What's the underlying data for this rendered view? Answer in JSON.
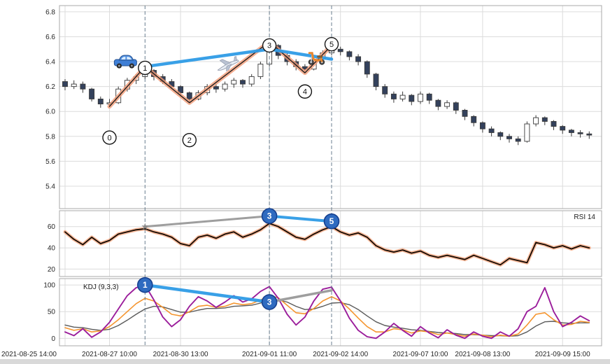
{
  "colors": {
    "grid": "#dcdcdc",
    "panel_border": "#a8a8a8",
    "axis_text": "#262626",
    "candle_up_fill": "#ffffff",
    "candle_down_fill": "#33415c",
    "candle_stroke": "#3a3a3a",
    "zigzag_glow": "#f29b77",
    "zigzag_line": "#1a1a1a",
    "trend_blue": "#2e9be6",
    "trend_gray": "#9e9e9e",
    "rsi_glow": "#f6b08e",
    "rsi_line": "#140a02",
    "kdj_k": "#f5952f",
    "kdj_d": "#5a5a5a",
    "kdj_j": "#9b1d9b",
    "dashed_guide": "#5b7285",
    "marker_blue_fill": "#2f6bc0",
    "marker_blue_border": "#16408f",
    "star_color": "#8a8a8a",
    "bottom_strip": "#d9d9d9"
  },
  "x_axis": {
    "tick_labels": [
      "2021-08-25 14:00",
      "2021-08-27 10:00",
      "2021-08-30 13:00",
      "2021-09-01 11:00",
      "2021-09-02 14:00",
      "2021-09-07 10:00",
      "2021-09-08 13:00",
      "2021-09-09 15:00"
    ],
    "tick_indices": [
      0,
      5,
      13,
      23,
      31,
      40,
      47,
      56
    ]
  },
  "dashed_line_indices": [
    9,
    23,
    30
  ],
  "chart_data": [
    {
      "type": "candlestick",
      "name": "price",
      "title": "",
      "ylim": [
        5.22,
        6.85
      ],
      "yticks": [
        6.8,
        6.6,
        6.4,
        6.2,
        6.0,
        5.8,
        5.6,
        5.4
      ],
      "ohlc": [
        [
          6.24,
          6.26,
          6.17,
          6.2
        ],
        [
          6.2,
          6.25,
          6.18,
          6.22
        ],
        [
          6.22,
          6.24,
          6.15,
          6.18
        ],
        [
          6.18,
          6.19,
          6.08,
          6.1
        ],
        [
          6.1,
          6.12,
          6.03,
          6.06
        ],
        [
          6.06,
          6.1,
          6.04,
          6.07
        ],
        [
          6.07,
          6.2,
          6.06,
          6.18
        ],
        [
          6.18,
          6.27,
          6.16,
          6.25
        ],
        [
          6.25,
          6.3,
          6.22,
          6.28
        ],
        [
          6.28,
          6.36,
          6.26,
          6.33
        ],
        [
          6.33,
          6.34,
          6.25,
          6.28
        ],
        [
          6.28,
          6.3,
          6.22,
          6.24
        ],
        [
          6.24,
          6.26,
          6.18,
          6.2
        ],
        [
          6.2,
          6.21,
          6.12,
          6.15
        ],
        [
          6.15,
          6.16,
          6.07,
          6.1
        ],
        [
          6.1,
          6.17,
          6.09,
          6.15
        ],
        [
          6.15,
          6.22,
          6.13,
          6.2
        ],
        [
          6.2,
          6.22,
          6.15,
          6.18
        ],
        [
          6.18,
          6.24,
          6.16,
          6.22
        ],
        [
          6.22,
          6.27,
          6.19,
          6.25
        ],
        [
          6.25,
          6.26,
          6.19,
          6.22
        ],
        [
          6.22,
          6.3,
          6.2,
          6.28
        ],
        [
          6.28,
          6.4,
          6.26,
          6.38
        ],
        [
          6.38,
          6.56,
          6.36,
          6.53
        ],
        [
          6.53,
          6.54,
          6.42,
          6.45
        ],
        [
          6.45,
          6.47,
          6.37,
          6.4
        ],
        [
          6.4,
          6.42,
          6.33,
          6.36
        ],
        [
          6.36,
          6.38,
          6.31,
          6.34
        ],
        [
          6.34,
          6.44,
          6.33,
          6.42
        ],
        [
          6.42,
          6.49,
          6.4,
          6.47
        ],
        [
          6.47,
          6.53,
          6.45,
          6.5
        ],
        [
          6.5,
          6.52,
          6.45,
          6.48
        ],
        [
          6.48,
          6.49,
          6.41,
          6.44
        ],
        [
          6.44,
          6.46,
          6.37,
          6.4
        ],
        [
          6.4,
          6.41,
          6.27,
          6.3
        ],
        [
          6.3,
          6.31,
          6.17,
          6.2
        ],
        [
          6.2,
          6.22,
          6.11,
          6.14
        ],
        [
          6.14,
          6.16,
          6.07,
          6.1
        ],
        [
          6.1,
          6.16,
          6.08,
          6.13
        ],
        [
          6.13,
          6.14,
          6.05,
          6.08
        ],
        [
          6.08,
          6.16,
          6.06,
          6.14
        ],
        [
          6.14,
          6.15,
          6.06,
          6.09
        ],
        [
          6.09,
          6.1,
          6.01,
          6.04
        ],
        [
          6.04,
          6.09,
          6.02,
          6.07
        ],
        [
          6.07,
          6.08,
          5.98,
          6.01
        ],
        [
          6.01,
          6.02,
          5.93,
          5.96
        ],
        [
          5.96,
          5.97,
          5.88,
          5.91
        ],
        [
          5.91,
          5.92,
          5.83,
          5.86
        ],
        [
          5.86,
          5.88,
          5.8,
          5.83
        ],
        [
          5.83,
          5.84,
          5.77,
          5.8
        ],
        [
          5.8,
          5.82,
          5.75,
          5.78
        ],
        [
          5.78,
          5.8,
          5.73,
          5.76
        ],
        [
          5.76,
          5.92,
          5.75,
          5.9
        ],
        [
          5.9,
          5.97,
          5.88,
          5.95
        ],
        [
          5.95,
          5.96,
          5.89,
          5.92
        ],
        [
          5.92,
          5.93,
          5.85,
          5.88
        ],
        [
          5.88,
          5.89,
          5.82,
          5.85
        ],
        [
          5.85,
          5.86,
          5.8,
          5.83
        ],
        [
          5.83,
          5.85,
          5.79,
          5.82
        ],
        [
          5.82,
          5.84,
          5.78,
          5.81
        ]
      ],
      "zigzag": [
        [
          5,
          6.04
        ],
        [
          9,
          6.36
        ],
        [
          14,
          6.07
        ],
        [
          23,
          6.56
        ],
        [
          27,
          6.31
        ],
        [
          30,
          6.53
        ]
      ],
      "blue_line": [
        [
          9,
          6.36
        ],
        [
          23,
          6.5
        ],
        [
          30,
          6.42
        ]
      ],
      "markers": [
        {
          "label": "0",
          "i": 5,
          "v": 5.79
        },
        {
          "label": "1",
          "i": 9,
          "v": 6.35
        },
        {
          "label": "2",
          "i": 14,
          "v": 5.77
        },
        {
          "label": "3",
          "i": 23,
          "v": 6.53
        },
        {
          "label": "4",
          "i": 27,
          "v": 6.16
        },
        {
          "label": "5",
          "i": 30,
          "v": 6.54
        }
      ],
      "icons": [
        {
          "name": "car",
          "i": 6.8,
          "v": 6.4
        },
        {
          "name": "airplane",
          "i": 18.3,
          "v": 6.38
        },
        {
          "name": "scooter",
          "i": 28.6,
          "v": 6.43
        }
      ]
    },
    {
      "type": "line",
      "name": "rsi",
      "label": "RSI 14",
      "ylim": [
        13,
        75
      ],
      "yticks": [
        60,
        40,
        20
      ],
      "values": [
        55,
        48,
        43,
        50,
        44,
        47,
        53,
        55,
        57,
        58,
        55,
        53,
        50,
        44,
        42,
        50,
        52,
        49,
        53,
        55,
        50,
        53,
        57,
        63,
        60,
        55,
        50,
        48,
        53,
        57,
        60,
        55,
        52,
        54,
        50,
        42,
        38,
        36,
        38,
        35,
        37,
        33,
        31,
        33,
        31,
        29,
        33,
        30,
        27,
        24,
        30,
        28,
        26,
        45,
        43,
        40,
        42,
        39,
        42,
        40
      ],
      "star": {
        "symbol": "star",
        "i": 9,
        "v": 60
      },
      "gray_line": [
        [
          9,
          60
        ],
        [
          23,
          70
        ]
      ],
      "blue_line": [
        [
          23,
          70
        ],
        [
          30,
          65
        ]
      ],
      "markers": [
        {
          "label": "3",
          "i": 23,
          "v": 70
        },
        {
          "label": "5",
          "i": 30,
          "v": 65
        }
      ]
    },
    {
      "type": "line",
      "name": "kdj",
      "label": "KDJ (9,3,3)",
      "ylim": [
        -14,
        112
      ],
      "yticks": [
        100,
        50,
        0
      ],
      "series": [
        {
          "name": "D",
          "values": [
            25,
            21,
            20,
            17,
            15,
            17,
            24,
            34,
            45,
            55,
            60,
            59,
            54,
            49,
            49,
            53,
            56,
            56,
            57,
            60,
            61,
            62,
            66,
            71,
            72,
            68,
            60,
            54,
            55,
            60,
            66,
            67,
            63,
            54,
            42,
            31,
            24,
            21,
            19,
            16,
            15,
            13,
            11,
            10,
            9,
            7,
            7,
            6,
            5,
            5,
            4,
            5,
            12,
            23,
            31,
            32,
            29,
            28,
            29,
            29
          ]
        },
        {
          "name": "K",
          "values": [
            20,
            15,
            18,
            12,
            14,
            22,
            35,
            50,
            65,
            75,
            70,
            58,
            45,
            42,
            50,
            60,
            62,
            58,
            60,
            66,
            63,
            65,
            72,
            80,
            76,
            62,
            48,
            46,
            56,
            70,
            78,
            70,
            55,
            38,
            22,
            12,
            12,
            18,
            16,
            10,
            14,
            12,
            7,
            10,
            7,
            4,
            8,
            6,
            3,
            6,
            4,
            8,
            25,
            45,
            48,
            35,
            25,
            26,
            32,
            30
          ]
        },
        {
          "name": "J",
          "values": [
            12,
            5,
            18,
            2,
            12,
            30,
            55,
            80,
            95,
            100,
            72,
            40,
            22,
            35,
            60,
            78,
            70,
            58,
            68,
            80,
            68,
            74,
            88,
            97,
            75,
            45,
            25,
            40,
            70,
            92,
            96,
            70,
            38,
            15,
            3,
            0,
            12,
            28,
            15,
            4,
            22,
            10,
            1,
            16,
            6,
            0,
            12,
            4,
            0,
            12,
            4,
            18,
            50,
            60,
            95,
            50,
            22,
            30,
            42,
            33
          ]
        }
      ],
      "blue_line": [
        [
          9,
          100
        ],
        [
          23,
          68
        ]
      ],
      "gray_line": [
        [
          23,
          68
        ],
        [
          30,
          90
        ]
      ],
      "markers": [
        {
          "label": "1",
          "i": 9,
          "v": 100
        },
        {
          "label": "3",
          "i": 23,
          "v": 68
        }
      ]
    }
  ]
}
